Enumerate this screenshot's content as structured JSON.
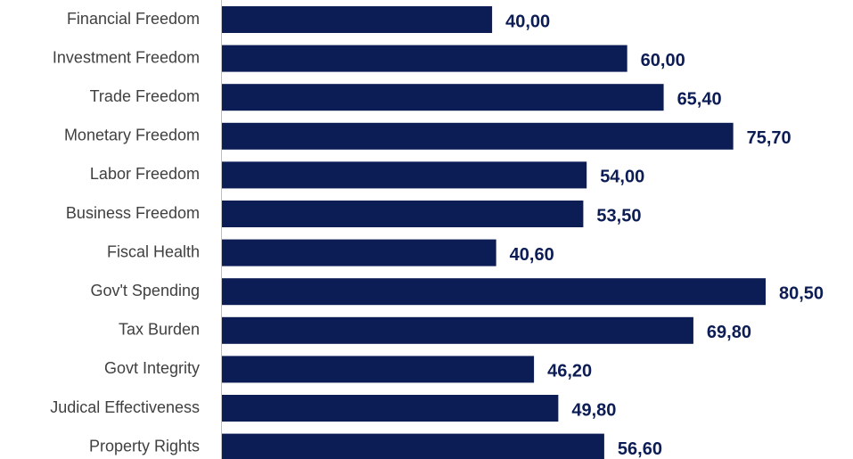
{
  "chart_data": {
    "type": "bar",
    "orientation": "horizontal",
    "categories": [
      "Financial Freedom",
      "Investment Freedom",
      "Trade Freedom",
      "Monetary Freedom",
      "Labor Freedom",
      "Business Freedom",
      "Fiscal Health",
      "Gov't Spending",
      "Tax Burden",
      "Govt Integrity",
      "Judical Effectiveness",
      "Property Rights"
    ],
    "values": [
      40.0,
      60.0,
      65.4,
      75.7,
      54.0,
      53.5,
      40.6,
      80.5,
      69.8,
      46.2,
      49.8,
      56.6
    ],
    "value_labels": [
      "40,00",
      "60,00",
      "65,40",
      "75,70",
      "54,00",
      "53,50",
      "40,60",
      "80,50",
      "69,80",
      "46,20",
      "49,80",
      "56,60"
    ],
    "color": "#0c1c54"
  }
}
